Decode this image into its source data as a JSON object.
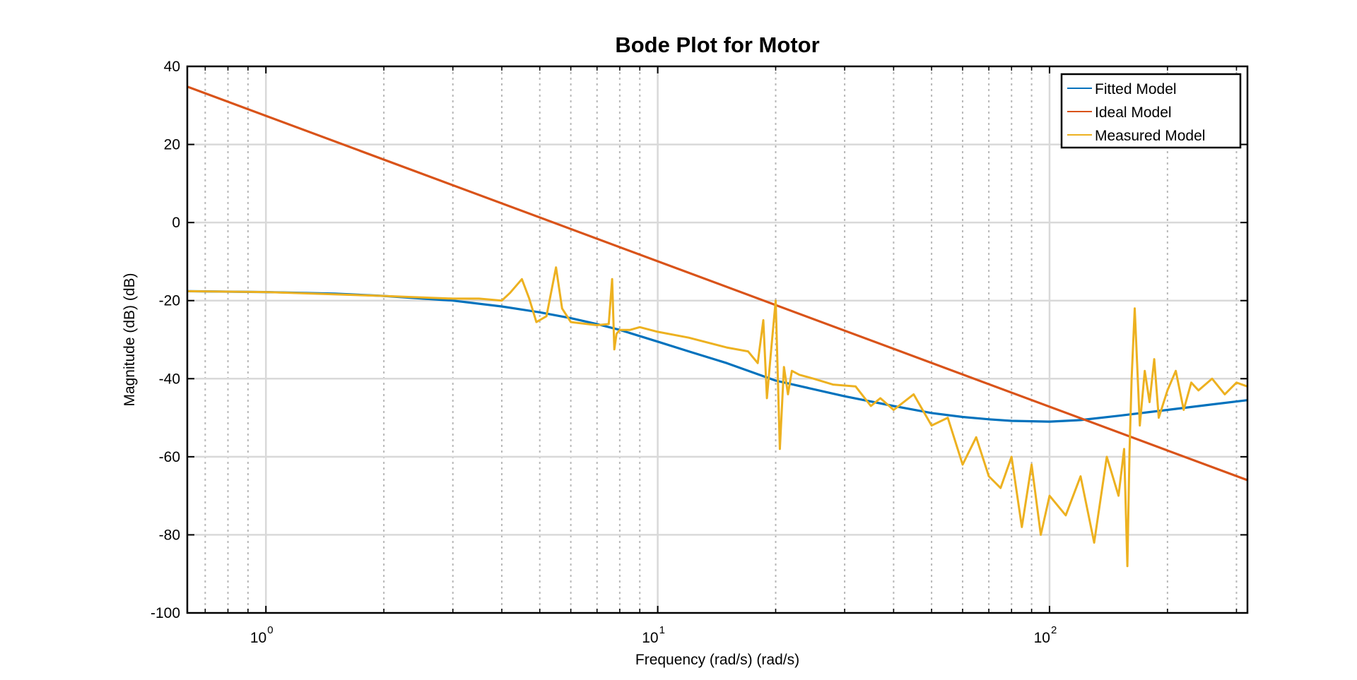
{
  "chart_data": {
    "type": "line",
    "title": "Bode Plot for Motor",
    "xlabel": "Frequency (rad/s)  (rad/s)",
    "ylabel": "Magnitude (dB) (dB)",
    "xscale": "log",
    "xlim": [
      0.63,
      320
    ],
    "ylim": [
      -100,
      40
    ],
    "grid": true,
    "minor_grid": true,
    "legend_position": "top-right",
    "x_ticks": [
      {
        "value": 1,
        "label": "10",
        "exp": "0"
      },
      {
        "value": 10,
        "label": "10",
        "exp": "1"
      },
      {
        "value": 100,
        "label": "10",
        "exp": "2"
      }
    ],
    "y_ticks": [
      {
        "value": 40,
        "label": "40"
      },
      {
        "value": 20,
        "label": "20"
      },
      {
        "value": 0,
        "label": "0"
      },
      {
        "value": -20,
        "label": "-20"
      },
      {
        "value": -40,
        "label": "-40"
      },
      {
        "value": -60,
        "label": "-60"
      },
      {
        "value": -80,
        "label": "-80"
      },
      {
        "value": -100,
        "label": "-100"
      }
    ],
    "series": [
      {
        "name": "Fitted Model",
        "color": "#0072BD",
        "x": [
          0.63,
          1,
          1.5,
          2,
          3,
          4,
          5,
          6,
          7,
          8,
          10,
          12,
          15,
          20,
          30,
          40,
          50,
          60,
          70,
          80,
          100,
          120,
          150,
          200,
          250,
          320
        ],
        "y": [
          -17.6,
          -17.8,
          -18.2,
          -18.8,
          -20,
          -21.5,
          -23,
          -24.5,
          -26,
          -27.5,
          -30.5,
          -33,
          -36,
          -40.5,
          -44.5,
          -47,
          -48.8,
          -49.8,
          -50.4,
          -50.8,
          -51,
          -50.6,
          -49.5,
          -48,
          -46.8,
          -45.5
        ]
      },
      {
        "name": "Ideal Model",
        "color": "#D95319",
        "x": [
          0.63,
          320
        ],
        "y": [
          34.8,
          -66
        ]
      },
      {
        "name": "Measured Model",
        "color": "#EDB120",
        "x": [
          0.63,
          1,
          2,
          3,
          3.5,
          4,
          4.2,
          4.5,
          4.7,
          4.9,
          5.2,
          5.5,
          5.7,
          6,
          7,
          7.5,
          7.65,
          7.75,
          7.85,
          8,
          8.5,
          9,
          10,
          12,
          15,
          17,
          18,
          18.6,
          19,
          19.5,
          20,
          20.5,
          21,
          21.5,
          22,
          23,
          25,
          28,
          32,
          35,
          37,
          40,
          45,
          50,
          55,
          60,
          65,
          70,
          75,
          80,
          85,
          90,
          95,
          100,
          110,
          120,
          130,
          140,
          150,
          155,
          158,
          160,
          162,
          165,
          170,
          175,
          180,
          185,
          190,
          200,
          210,
          220,
          230,
          240,
          260,
          280,
          300,
          320
        ],
        "y": [
          -17.6,
          -17.8,
          -18.8,
          -19.5,
          -19.5,
          -20,
          -18,
          -14.5,
          -19.5,
          -25.5,
          -24,
          -11.5,
          -22,
          -25.5,
          -26.3,
          -26,
          -14.5,
          -32.5,
          -28.5,
          -27.5,
          -27.5,
          -26.8,
          -28,
          -29.5,
          -32,
          -33,
          -36,
          -25,
          -45,
          -32,
          -20,
          -58,
          -37,
          -44,
          -38,
          -39,
          -40,
          -41.5,
          -42,
          -47,
          -45,
          -48,
          -44,
          -52,
          -50,
          -62,
          -55,
          -65,
          -68,
          -60,
          -78,
          -62,
          -80,
          -70,
          -75,
          -65,
          -82,
          -60,
          -70,
          -58,
          -88,
          -59,
          -40,
          -22,
          -52,
          -38,
          -46,
          -35,
          -50,
          -43,
          -38,
          -48,
          -41,
          -43,
          -40,
          -44,
          -41,
          -42
        ]
      }
    ]
  }
}
